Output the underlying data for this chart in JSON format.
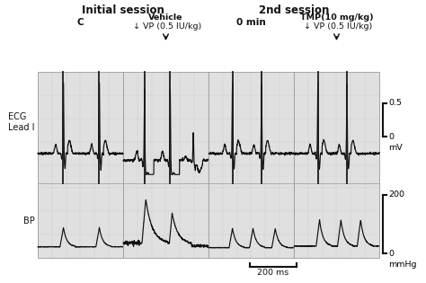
{
  "figure_bg": "#ffffff",
  "panel_bg": "#e0e0e0",
  "title1": "Initial session",
  "title2": "2nd session",
  "label_C": "C",
  "label_vehicle": "Vehicle",
  "label_vp1": "VP (0.5 IU/kg)",
  "label_0min": "0 min",
  "label_tmp": "TMP(10 mg/kg)",
  "label_vp2": "VP (0.5 IU/kg)",
  "label_ecg": "ECG\nLead I",
  "label_bp": "BP",
  "label_05mv": "0.5",
  "label_0mv": "0",
  "label_mv": "mV",
  "label_200": "200",
  "label_0mmhg": "0",
  "label_mmhg": "mmHg",
  "label_200ms": "200 ms",
  "line_color": "#111111",
  "grid_color": "#b0b0b0",
  "text_color": "#111111"
}
